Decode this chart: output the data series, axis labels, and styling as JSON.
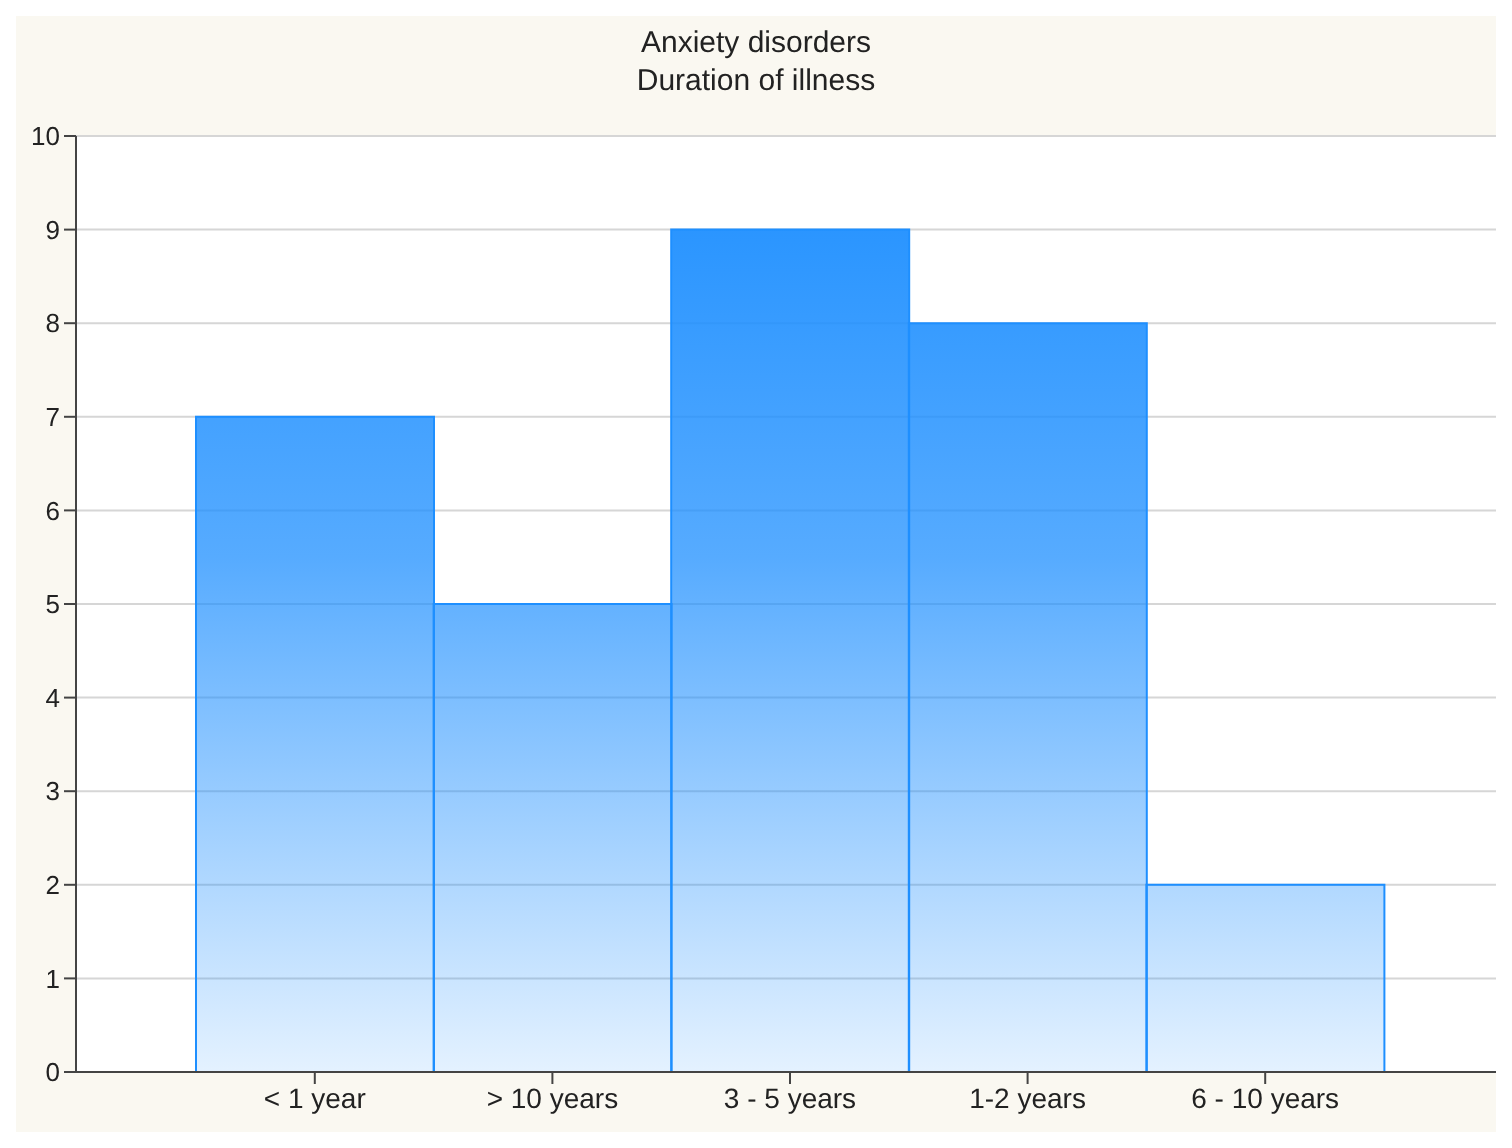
{
  "chart_data": {
    "type": "bar",
    "title": "Anxiety disorders",
    "subtitle": "Duration of illness",
    "categories": [
      "< 1 year",
      "> 10 years",
      "3 - 5 years",
      "1-2 years",
      "6 - 10 years"
    ],
    "values": [
      7,
      5,
      9,
      8,
      2
    ],
    "color": "#1e8fff",
    "ylim": [
      0,
      10
    ],
    "yticks": [
      0,
      1,
      2,
      3,
      4,
      5,
      6,
      7,
      8,
      9,
      10
    ],
    "grid": "y"
  }
}
